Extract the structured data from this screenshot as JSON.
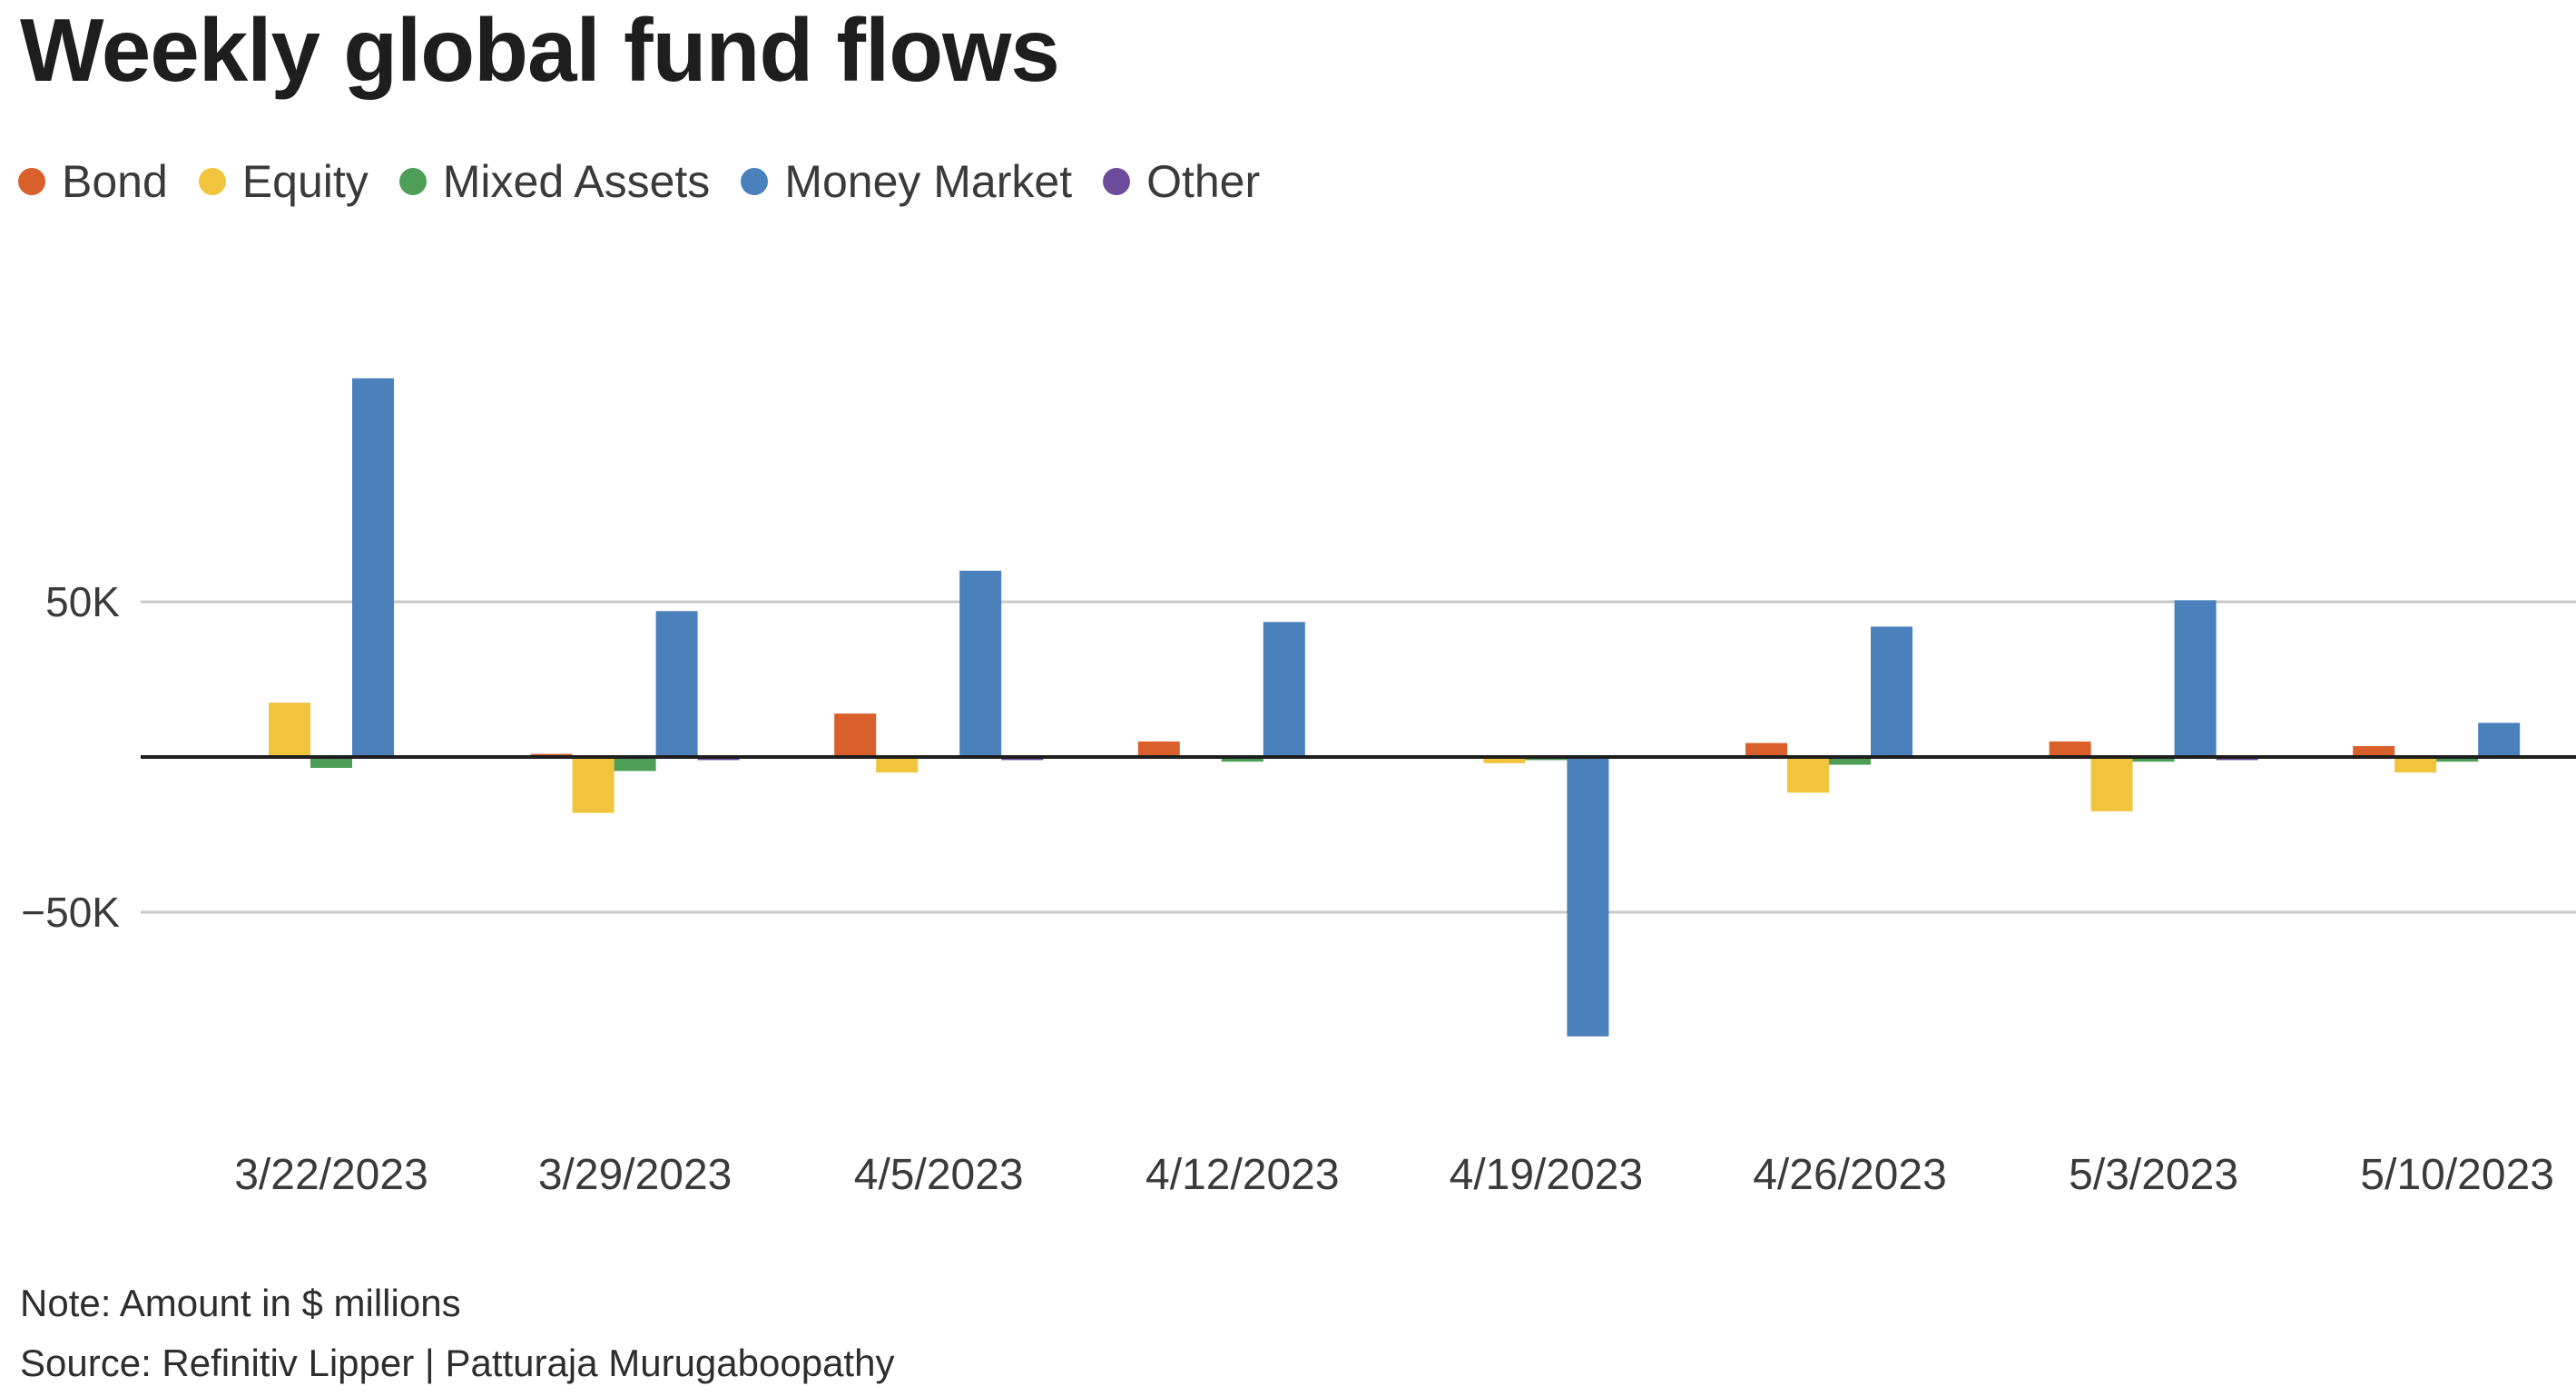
{
  "title": "Weekly global fund flows",
  "colors": {
    "Bond": "#d9602b",
    "Equity": "#f0c43c",
    "Mixed Assets": "#4e9e57",
    "Money Market": "#4a80bb",
    "Other": "#6d4c9e",
    "grid": "#c8c8c8",
    "zero_line": "#1e1e1e",
    "tick_text": "#3a3a3a"
  },
  "chart_data": {
    "type": "bar",
    "categories": [
      "3/22/2023",
      "3/29/2023",
      "4/5/2023",
      "4/12/2023",
      "4/19/2023",
      "4/26/2023",
      "5/3/2023",
      "5/10/2023"
    ],
    "series": [
      {
        "name": "Bond",
        "values": [
          0,
          1000,
          14000,
          5000,
          0,
          4500,
          5000,
          3500
        ]
      },
      {
        "name": "Equity",
        "values": [
          17500,
          -18000,
          -5000,
          0,
          -2000,
          -11500,
          -17500,
          -5000
        ]
      },
      {
        "name": "Mixed Assets",
        "values": [
          -3500,
          -4500,
          0,
          -1500,
          -1000,
          -2500,
          -1500,
          -1500
        ]
      },
      {
        "name": "Money Market",
        "values": [
          122000,
          47000,
          60000,
          43500,
          -90000,
          42000,
          50500,
          11000
        ]
      },
      {
        "name": "Other",
        "values": [
          0,
          -1000,
          -1000,
          0,
          0,
          0,
          -1000,
          0
        ]
      }
    ],
    "yticks": [
      {
        "value": 50000,
        "label": "50K"
      },
      {
        "value": -50000,
        "label": "−50K"
      }
    ],
    "ylim": [
      -125000,
      155000
    ],
    "grid": true,
    "legend": "top-left"
  },
  "note": "Note: Amount in $ millions",
  "source": "Source: Refinitiv Lipper | Patturaja Murugaboopathy"
}
